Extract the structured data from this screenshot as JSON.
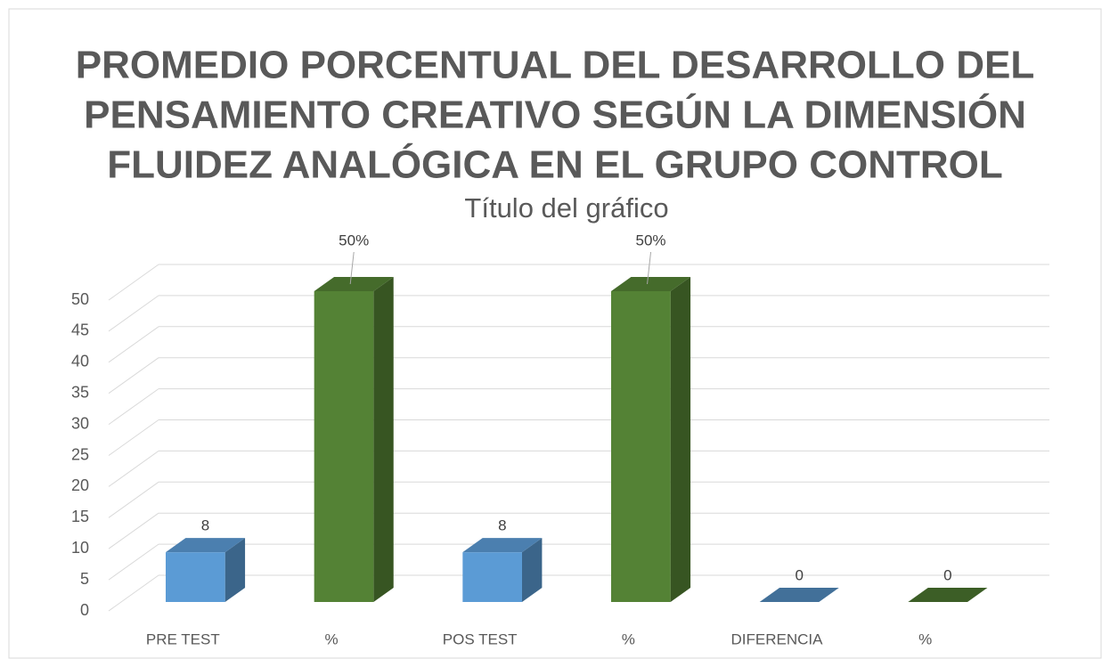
{
  "chart_data": {
    "type": "bar3d",
    "title": [
      "PROMEDIO PORCENTUAL DEL DESARROLLO DEL",
      "PENSAMIENTO CREATIVO SEGÚN LA DIMENSIÓN",
      "FLUIDEZ ANALÓGICA EN EL GRUPO CONTROL"
    ],
    "subtitle": "Título del gráfico",
    "categories": [
      "PRE TEST",
      "%",
      "POS TEST",
      "%",
      "DIFERENCIA",
      "%"
    ],
    "values": [
      8,
      50,
      8,
      50,
      0,
      0
    ],
    "value_labels": [
      "8",
      "50%",
      "8",
      "50%",
      "0",
      "0"
    ],
    "colors": [
      "#5b9bd5",
      "#548235",
      "#5b9bd5",
      "#548235",
      "#5b9bd5",
      "#548235"
    ],
    "ylim": [
      0,
      50
    ],
    "yticks": [
      0,
      5,
      10,
      15,
      20,
      25,
      30,
      35,
      40,
      45,
      50
    ],
    "grid": true
  }
}
